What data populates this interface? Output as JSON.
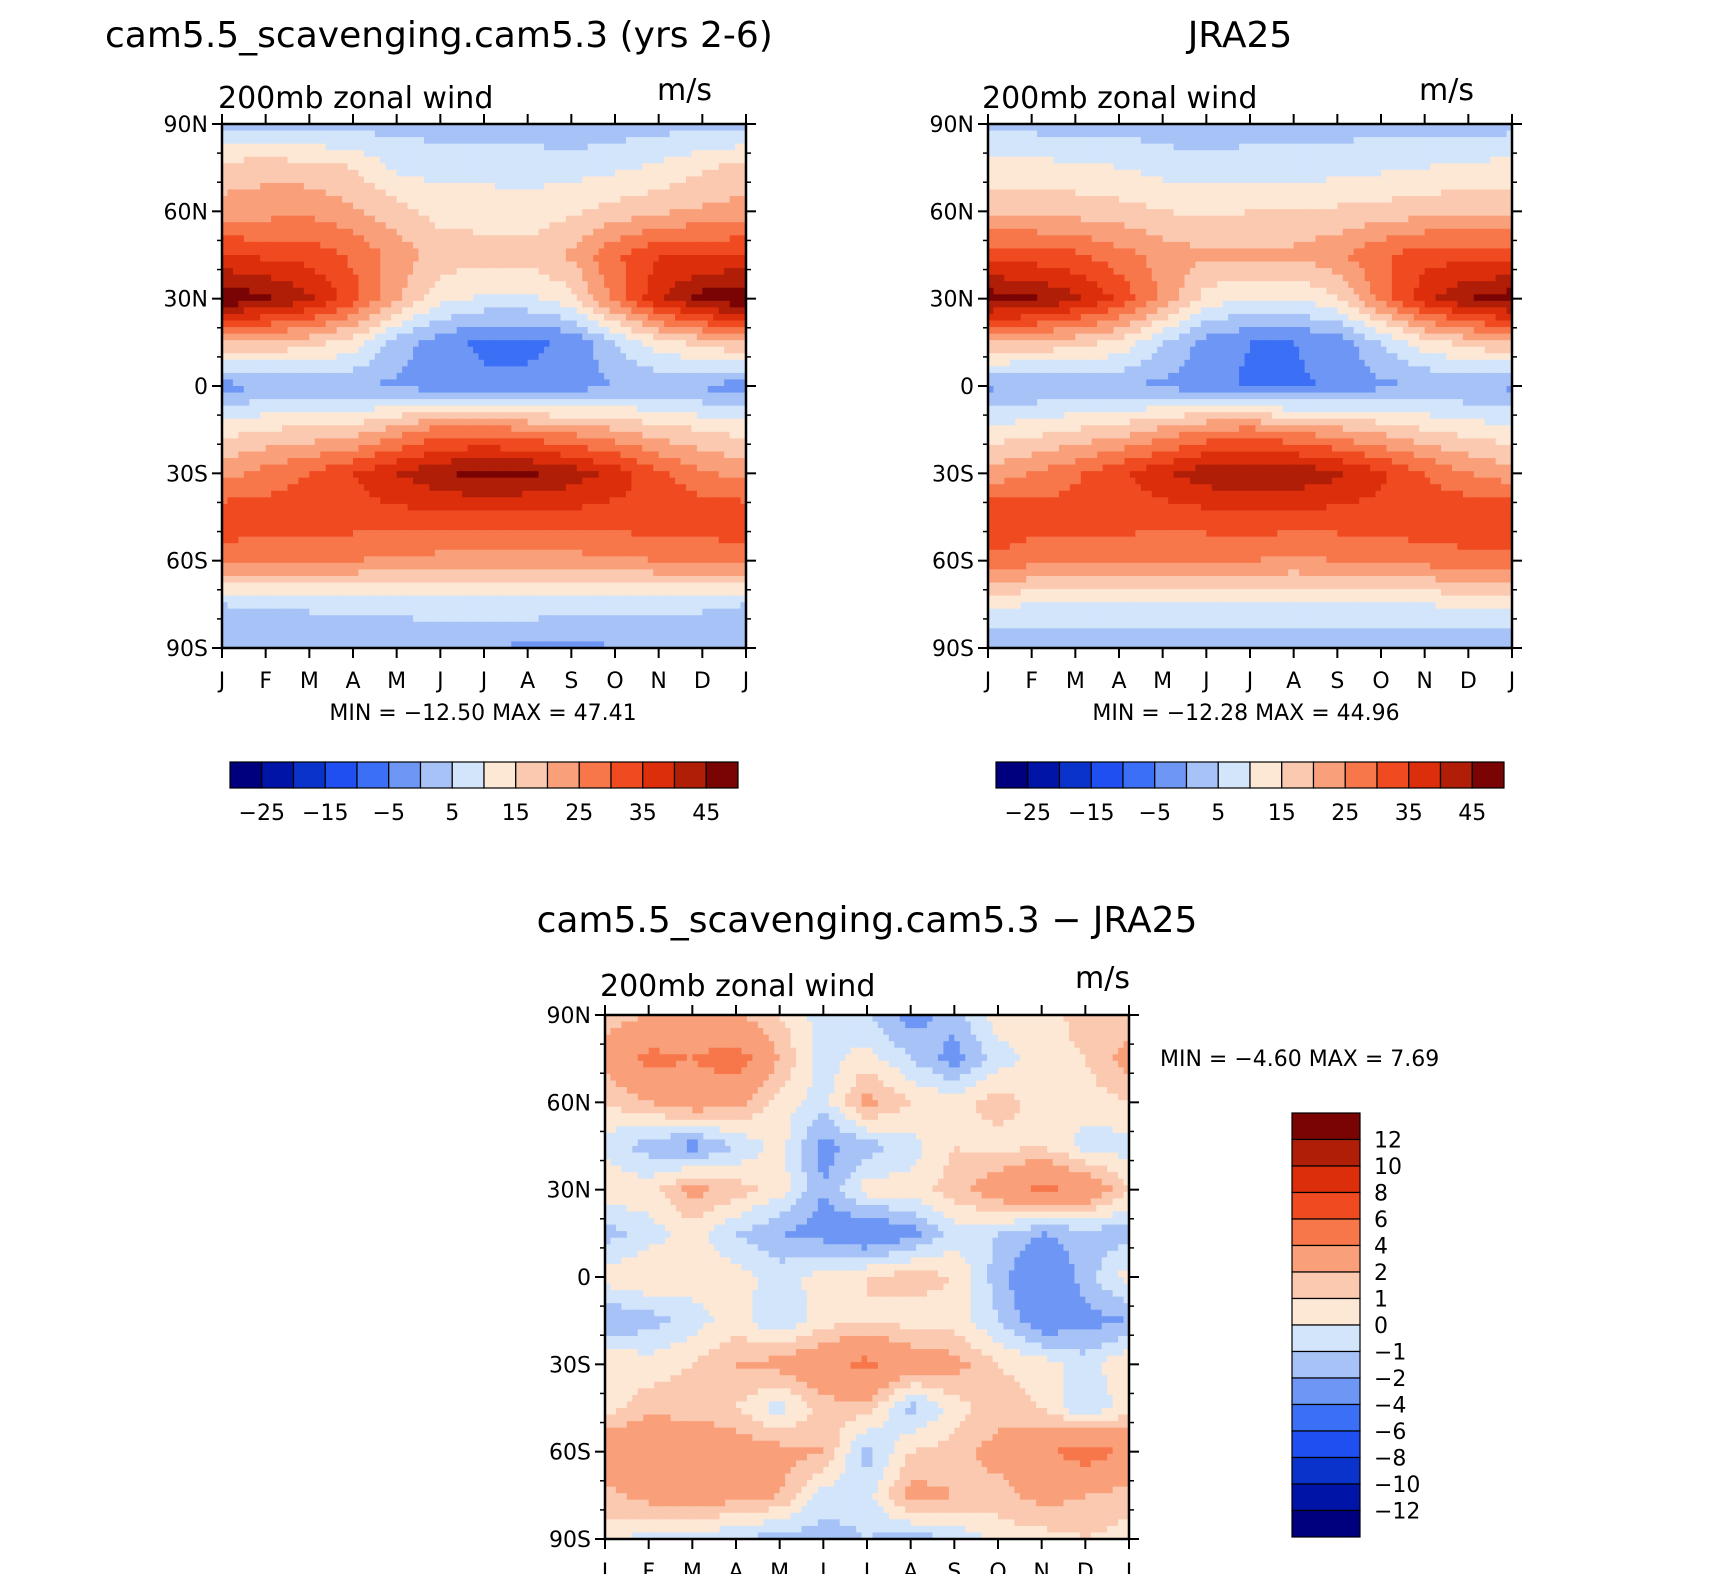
{
  "chart_data": [
    {
      "type": "heatmap",
      "title": "cam5.5_scavenging.cam5.3 (yrs 2-6)",
      "left_label": "200mb zonal wind",
      "right_label": "m/s",
      "x_ticklabels": [
        "J",
        "F",
        "M",
        "A",
        "M",
        "J",
        "J",
        "A",
        "S",
        "O",
        "N",
        "D",
        "J"
      ],
      "y_ticklabels": [
        "90N",
        "60N",
        "30N",
        "0",
        "30S",
        "60S",
        "90S"
      ],
      "stat_text": "MIN = −12.50 MAX =   47.41",
      "min": -12.5,
      "max": 47.41,
      "colorbar_labels": [
        "−25",
        "−15",
        "−5",
        "5",
        "15",
        "25",
        "35",
        "45"
      ],
      "field": {
        "lat": [
          90,
          75,
          60,
          45,
          30,
          15,
          0,
          -15,
          -30,
          -45,
          -60,
          -75,
          -90
        ],
        "months": [
          "J",
          "F",
          "M",
          "A",
          "M",
          "J",
          "J",
          "A",
          "S",
          "O",
          "N",
          "D",
          "J"
        ],
        "values": [
          [
            -2,
            -2,
            -2,
            -2,
            -2,
            -2,
            -2,
            -3,
            -4,
            -3,
            -2,
            -2,
            -2
          ],
          [
            12,
            13,
            12,
            10,
            4,
            3,
            3,
            3,
            3,
            4,
            6,
            9,
            12
          ],
          [
            17,
            18,
            19,
            16,
            12,
            8,
            8,
            7,
            9,
            12,
            14,
            16,
            17
          ],
          [
            30,
            29,
            28,
            24,
            18,
            13,
            12,
            12,
            16,
            24,
            30,
            30,
            30
          ],
          [
            45,
            41,
            36,
            27,
            16,
            7,
            4,
            4,
            8,
            22,
            34,
            42,
            45
          ],
          [
            15,
            14,
            12,
            8,
            -2,
            -8,
            -11,
            -11,
            -9,
            0,
            8,
            12,
            15
          ],
          [
            -7,
            -5,
            -4,
            -5,
            -6,
            -8,
            -9,
            -9,
            -8,
            -5,
            -4,
            -6,
            -7
          ],
          [
            8,
            10,
            11,
            12,
            17,
            22,
            22,
            20,
            18,
            15,
            12,
            10,
            8
          ],
          [
            18,
            22,
            25,
            30,
            35,
            39,
            42,
            41,
            38,
            33,
            26,
            21,
            18
          ],
          [
            29,
            28,
            28,
            28,
            28,
            29,
            29,
            28,
            28,
            28,
            29,
            29,
            29
          ],
          [
            22,
            21,
            21,
            20,
            19,
            18,
            17,
            17,
            18,
            19,
            20,
            21,
            22
          ],
          [
            0,
            1,
            1,
            2,
            2,
            3,
            3,
            3,
            3,
            2,
            2,
            1,
            0
          ],
          [
            -5,
            -5,
            -5,
            -5,
            -5,
            -5,
            -5,
            -6,
            -7,
            -5,
            -5,
            -5,
            -5
          ]
        ]
      }
    },
    {
      "type": "heatmap",
      "title": "JRA25",
      "left_label": "200mb zonal wind",
      "right_label": "m/s",
      "x_ticklabels": [
        "J",
        "F",
        "M",
        "A",
        "M",
        "J",
        "J",
        "A",
        "S",
        "O",
        "N",
        "D",
        "J"
      ],
      "y_ticklabels": [
        "90N",
        "60N",
        "30N",
        "0",
        "30S",
        "60S",
        "90S"
      ],
      "stat_text": "MIN = −12.28 MAX =   44.96",
      "min": -12.28,
      "max": 44.96,
      "colorbar_labels": [
        "−25",
        "−15",
        "−5",
        "5",
        "15",
        "25",
        "35",
        "45"
      ],
      "field": {
        "lat": [
          90,
          75,
          60,
          45,
          30,
          15,
          0,
          -15,
          -30,
          -45,
          -60,
          -75,
          -90
        ],
        "months": [
          "J",
          "F",
          "M",
          "A",
          "M",
          "J",
          "J",
          "A",
          "S",
          "O",
          "N",
          "D",
          "J"
        ],
        "values": [
          [
            -2,
            -2,
            -2,
            -2,
            -3,
            -3,
            -2,
            -2,
            -2,
            -2,
            -2,
            -2,
            -2
          ],
          [
            7,
            7,
            6,
            5,
            3,
            2,
            2,
            2,
            3,
            4,
            5,
            6,
            7
          ],
          [
            14,
            14,
            13,
            12,
            10,
            9,
            10,
            11,
            11,
            12,
            13,
            14,
            14
          ],
          [
            27,
            27,
            26,
            22,
            18,
            16,
            16,
            16,
            19,
            24,
            28,
            28,
            27
          ],
          [
            43,
            41,
            36,
            29,
            19,
            8,
            5,
            5,
            9,
            22,
            33,
            40,
            43
          ],
          [
            15,
            14,
            12,
            9,
            0,
            -7,
            -10,
            -10,
            -8,
            0,
            8,
            12,
            15
          ],
          [
            -6,
            -5,
            -4,
            -5,
            -6,
            -8,
            -11,
            -11,
            -9,
            -6,
            -5,
            -5,
            -6
          ],
          [
            6,
            8,
            10,
            12,
            16,
            20,
            21,
            19,
            16,
            13,
            10,
            8,
            6
          ],
          [
            17,
            20,
            24,
            29,
            34,
            38,
            40,
            39,
            36,
            31,
            25,
            20,
            17
          ],
          [
            30,
            28,
            28,
            27,
            27,
            28,
            29,
            28,
            28,
            28,
            29,
            30,
            30
          ],
          [
            24,
            22,
            22,
            22,
            21,
            20,
            20,
            19,
            20,
            21,
            22,
            23,
            24
          ],
          [
            6,
            5,
            5,
            5,
            4,
            4,
            4,
            4,
            5,
            5,
            5,
            6,
            6
          ],
          [
            -4,
            -4,
            -4,
            -4,
            -4,
            -4,
            -4,
            -4,
            -4,
            -4,
            -4,
            -4,
            -4
          ]
        ]
      }
    },
    {
      "type": "heatmap",
      "title": "cam5.5_scavenging.cam5.3 − JRA25",
      "left_label": "200mb zonal wind",
      "right_label": "m/s",
      "x_ticklabels": [
        "J",
        "F",
        "M",
        "A",
        "M",
        "J",
        "J",
        "A",
        "S",
        "O",
        "N",
        "D",
        "J"
      ],
      "y_ticklabels": [
        "90N",
        "60N",
        "30N",
        "0",
        "30S",
        "60S",
        "90S"
      ],
      "stat_text": "MIN =   −4.60  MAX =     7.69",
      "min": -4.6,
      "max": 7.69,
      "colorbar_labels": [
        "12",
        "10",
        "8",
        "6",
        "4",
        "2",
        "1",
        "0",
        "−1",
        "−2",
        "−4",
        "−6",
        "−8",
        "−10",
        "−12"
      ],
      "field": {
        "lat": [
          90,
          75,
          60,
          45,
          30,
          15,
          0,
          -15,
          -30,
          -45,
          -60,
          -75,
          -90
        ],
        "months": [
          "J",
          "F",
          "M",
          "A",
          "M",
          "J",
          "J",
          "A",
          "S",
          "O",
          "N",
          "D",
          "J"
        ],
        "values": [
          [
            1.5,
            2.0,
            2.5,
            2.0,
            1.0,
            -0.5,
            -1.0,
            -2.5,
            -1.5,
            0.5,
            0.5,
            1.5,
            1.5
          ],
          [
            2.5,
            4.5,
            4.0,
            5.0,
            2.0,
            -0.5,
            0.5,
            -1.0,
            -2.5,
            -0.5,
            0.5,
            1.0,
            2.5
          ],
          [
            1.0,
            2.0,
            3.0,
            2.5,
            0.5,
            -0.5,
            2.5,
            1.0,
            0.5,
            1.5,
            0.5,
            0.5,
            1.0
          ],
          [
            -0.5,
            -1.5,
            -2.5,
            -1.0,
            0.5,
            -2.5,
            -1.5,
            -0.5,
            1.0,
            0.5,
            1.0,
            -0.5,
            -0.5
          ],
          [
            1.0,
            0.5,
            2.5,
            1.5,
            0.5,
            -2.0,
            0.5,
            0.5,
            1.5,
            3.0,
            4.5,
            3.5,
            1.0
          ],
          [
            -1.5,
            -0.5,
            0.5,
            -1.0,
            -2.0,
            -2.5,
            -3.5,
            -2.5,
            -0.5,
            -1.0,
            -2.0,
            -1.5,
            -1.5
          ],
          [
            0.5,
            1.0,
            0.5,
            0.5,
            -0.5,
            0.5,
            1.0,
            1.5,
            1.0,
            -1.5,
            -3.5,
            -1.5,
            0.5
          ],
          [
            -2.0,
            -1.5,
            -0.5,
            0.5,
            -1.0,
            0.5,
            1.0,
            0.5,
            0.5,
            -1.0,
            -3.0,
            -2.5,
            -2.0
          ],
          [
            1.0,
            0.5,
            1.0,
            2.0,
            2.5,
            3.5,
            4.5,
            3.0,
            2.5,
            1.0,
            0.5,
            -0.5,
            1.0
          ],
          [
            0.5,
            1.5,
            1.5,
            1.0,
            -0.5,
            1.5,
            1.5,
            -1.5,
            0.5,
            1.5,
            1.0,
            -1.0,
            0.5
          ],
          [
            3.5,
            4.0,
            3.5,
            3.0,
            2.5,
            2.0,
            -1.5,
            1.0,
            1.5,
            2.5,
            3.5,
            5.0,
            3.5
          ],
          [
            1.5,
            2.5,
            3.0,
            2.5,
            2.0,
            -0.5,
            -0.5,
            2.5,
            2.0,
            1.5,
            2.5,
            2.0,
            1.5
          ],
          [
            0.5,
            -0.5,
            -0.5,
            -1.0,
            -1.5,
            -1.5,
            -1.0,
            -1.5,
            -1.0,
            0.5,
            0.5,
            1.0,
            0.5
          ]
        ]
      }
    }
  ],
  "colormap": {
    "abs_colors": [
      "#00007f",
      "#0014a8",
      "#0a33cc",
      "#1f4ff0",
      "#3b6ff5",
      "#6e96f5",
      "#a6c2f7",
      "#d2e5fb",
      "#fde8d6",
      "#fbc8b0",
      "#f9a07a",
      "#f7764a",
      "#f04a21",
      "#dc2e0a",
      "#b01e08",
      "#7a0404"
    ],
    "diff_colors": [
      "#7a0404",
      "#b01e08",
      "#dc2e0a",
      "#f04a21",
      "#f7764a",
      "#f9a07a",
      "#fbc8b0",
      "#fde8d6",
      "#d2e5fb",
      "#a6c2f7",
      "#6e96f5",
      "#3b6ff5",
      "#1f4ff0",
      "#0a33cc",
      "#0014a8",
      "#00007f"
    ]
  }
}
